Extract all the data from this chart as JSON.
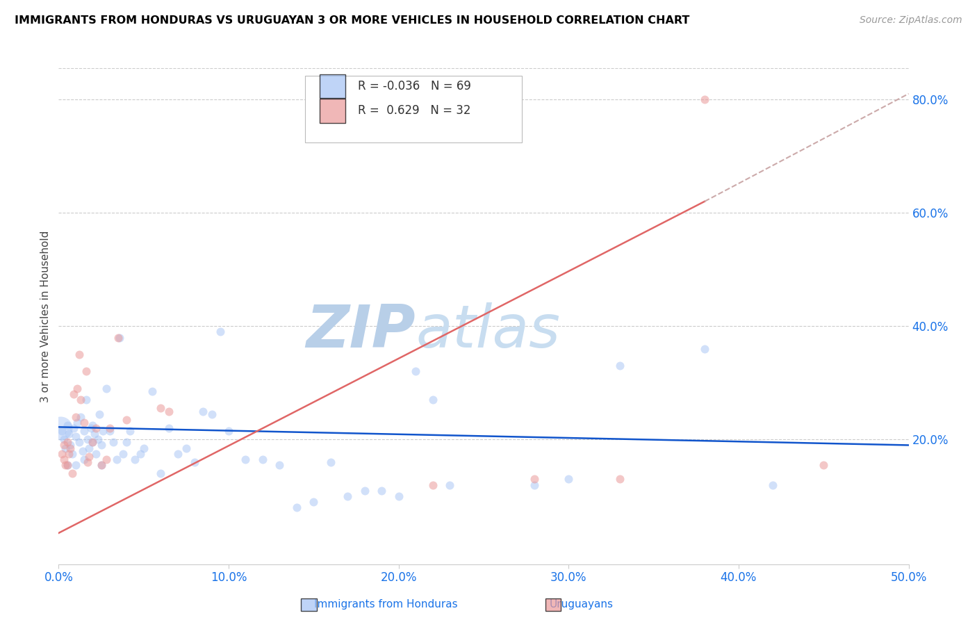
{
  "title": "IMMIGRANTS FROM HONDURAS VS URUGUAYAN 3 OR MORE VEHICLES IN HOUSEHOLD CORRELATION CHART",
  "source": "Source: ZipAtlas.com",
  "ylabel": "3 or more Vehicles in Household",
  "xlim": [
    0.0,
    0.5
  ],
  "ylim": [
    -0.02,
    0.855
  ],
  "yticks": [
    0.2,
    0.4,
    0.6,
    0.8
  ],
  "xticks": [
    0.0,
    0.1,
    0.2,
    0.3,
    0.4,
    0.5
  ],
  "legend_blue_r": "-0.036",
  "legend_blue_n": "69",
  "legend_pink_r": "0.629",
  "legend_pink_n": "32",
  "legend_label_blue": "Immigrants from Honduras",
  "legend_label_pink": "Uruguayans",
  "blue_color": "#a4c2f4",
  "pink_color": "#ea9999",
  "blue_line_color": "#1155cc",
  "pink_line_color": "#e06666",
  "dashed_line_color": "#ccaaaa",
  "watermark_zip": "ZIP",
  "watermark_atlas": "atlas",
  "watermark_color": "#d0e0f8",
  "axis_label_color": "#1a73e8",
  "title_color": "#000000",
  "background_color": "#ffffff",
  "blue_line_x0": 0.0,
  "blue_line_y0": 0.222,
  "blue_line_x1": 0.5,
  "blue_line_y1": 0.19,
  "pink_line_x0": 0.0,
  "pink_line_y0": 0.035,
  "pink_line_x1": 0.38,
  "pink_line_y1": 0.62,
  "dash_line_x0": 0.38,
  "dash_line_y0": 0.62,
  "dash_line_x1": 0.5,
  "dash_line_y1": 0.81,
  "blue_scatter_x": [
    0.002,
    0.003,
    0.004,
    0.005,
    0.006,
    0.007,
    0.008,
    0.009,
    0.01,
    0.011,
    0.012,
    0.013,
    0.014,
    0.015,
    0.016,
    0.017,
    0.018,
    0.019,
    0.02,
    0.021,
    0.022,
    0.023,
    0.024,
    0.025,
    0.026,
    0.028,
    0.03,
    0.032,
    0.034,
    0.036,
    0.038,
    0.04,
    0.042,
    0.045,
    0.048,
    0.05,
    0.055,
    0.06,
    0.065,
    0.07,
    0.075,
    0.08,
    0.085,
    0.09,
    0.095,
    0.1,
    0.11,
    0.12,
    0.13,
    0.14,
    0.15,
    0.16,
    0.17,
    0.18,
    0.19,
    0.2,
    0.21,
    0.22,
    0.23,
    0.28,
    0.3,
    0.33,
    0.38,
    0.42,
    0.005,
    0.01,
    0.015,
    0.02,
    0.025
  ],
  "blue_scatter_y": [
    0.215,
    0.2,
    0.185,
    0.225,
    0.21,
    0.19,
    0.175,
    0.22,
    0.205,
    0.23,
    0.195,
    0.24,
    0.18,
    0.215,
    0.27,
    0.2,
    0.185,
    0.22,
    0.195,
    0.21,
    0.175,
    0.2,
    0.245,
    0.19,
    0.215,
    0.29,
    0.215,
    0.195,
    0.165,
    0.38,
    0.175,
    0.195,
    0.215,
    0.165,
    0.175,
    0.185,
    0.285,
    0.14,
    0.22,
    0.175,
    0.185,
    0.16,
    0.25,
    0.245,
    0.39,
    0.215,
    0.165,
    0.165,
    0.155,
    0.08,
    0.09,
    0.16,
    0.1,
    0.11,
    0.11,
    0.1,
    0.32,
    0.27,
    0.12,
    0.12,
    0.13,
    0.33,
    0.36,
    0.12,
    0.155,
    0.155,
    0.165,
    0.225,
    0.155
  ],
  "blue_large_x": [
    0.001
  ],
  "blue_large_y": [
    0.22
  ],
  "blue_large_size": [
    600
  ],
  "pink_scatter_x": [
    0.003,
    0.004,
    0.005,
    0.006,
    0.007,
    0.008,
    0.009,
    0.01,
    0.011,
    0.012,
    0.013,
    0.015,
    0.016,
    0.017,
    0.018,
    0.02,
    0.022,
    0.025,
    0.028,
    0.03,
    0.035,
    0.04,
    0.06,
    0.065,
    0.22,
    0.28,
    0.33,
    0.38,
    0.45,
    0.002,
    0.003,
    0.005
  ],
  "pink_scatter_y": [
    0.165,
    0.155,
    0.195,
    0.175,
    0.185,
    0.14,
    0.28,
    0.24,
    0.29,
    0.35,
    0.27,
    0.23,
    0.32,
    0.16,
    0.17,
    0.195,
    0.22,
    0.155,
    0.165,
    0.22,
    0.38,
    0.235,
    0.255,
    0.25,
    0.12,
    0.13,
    0.13,
    0.8,
    0.155,
    0.175,
    0.19,
    0.155
  ]
}
